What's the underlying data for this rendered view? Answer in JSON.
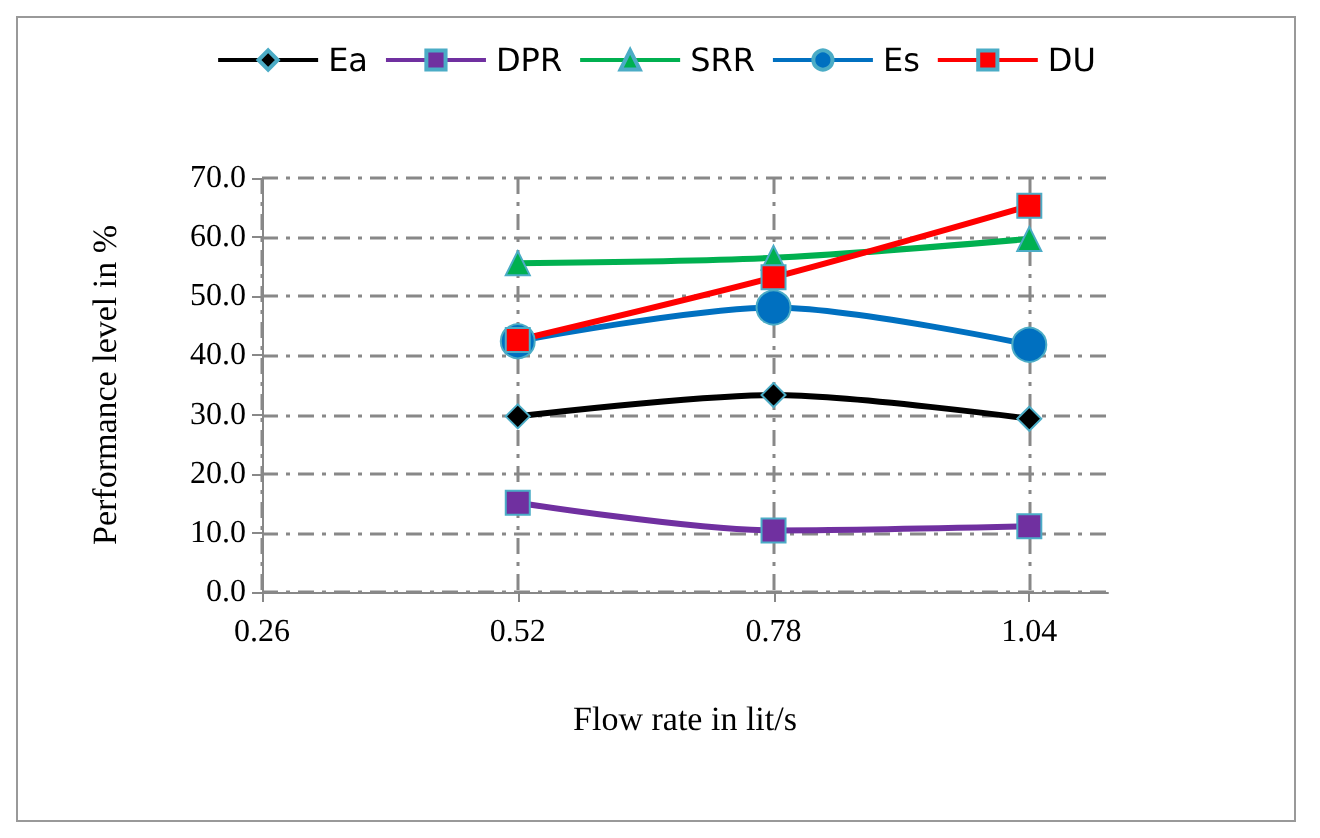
{
  "chart_data": {
    "type": "line",
    "xlabel": "Flow rate in lit/s",
    "ylabel": "Performance level in %",
    "x": [
      0.52,
      0.78,
      1.04
    ],
    "series": [
      {
        "name": "Ea",
        "color": "#000000",
        "marker": "diamond",
        "values": [
          29.7,
          33.3,
          29.3
        ]
      },
      {
        "name": "DPR",
        "color": "#7030a0",
        "marker": "square",
        "values": [
          15.1,
          10.4,
          11.1
        ]
      },
      {
        "name": "SRR",
        "color": "#00b050",
        "marker": "triangle",
        "values": [
          55.6,
          56.5,
          59.7
        ]
      },
      {
        "name": "Es",
        "color": "#0070c0",
        "marker": "circle",
        "values": [
          42.4,
          48.1,
          41.8
        ]
      },
      {
        "name": "DU",
        "color": "#ff0000",
        "marker": "square",
        "values": [
          42.6,
          53.2,
          65.3
        ]
      }
    ],
    "xlim": [
      0.26,
      1.12
    ],
    "xticks": [
      {
        "value": 0.26,
        "label": "0.26"
      },
      {
        "value": 0.52,
        "label": "0.52"
      },
      {
        "value": 0.78,
        "label": "0.78"
      },
      {
        "value": 1.04,
        "label": "1.04"
      }
    ],
    "ylim": [
      0,
      70
    ],
    "yticks": [
      {
        "value": 0,
        "label": "0.0"
      },
      {
        "value": 10,
        "label": "10.0"
      },
      {
        "value": 20,
        "label": "20.0"
      },
      {
        "value": 30,
        "label": "30.0"
      },
      {
        "value": 40,
        "label": "40.0"
      },
      {
        "value": 50,
        "label": "50.0"
      },
      {
        "value": 60,
        "label": "60.0"
      },
      {
        "value": 70,
        "label": "70.0"
      }
    ],
    "grid": true,
    "legend": "top",
    "line_style": "solid"
  }
}
